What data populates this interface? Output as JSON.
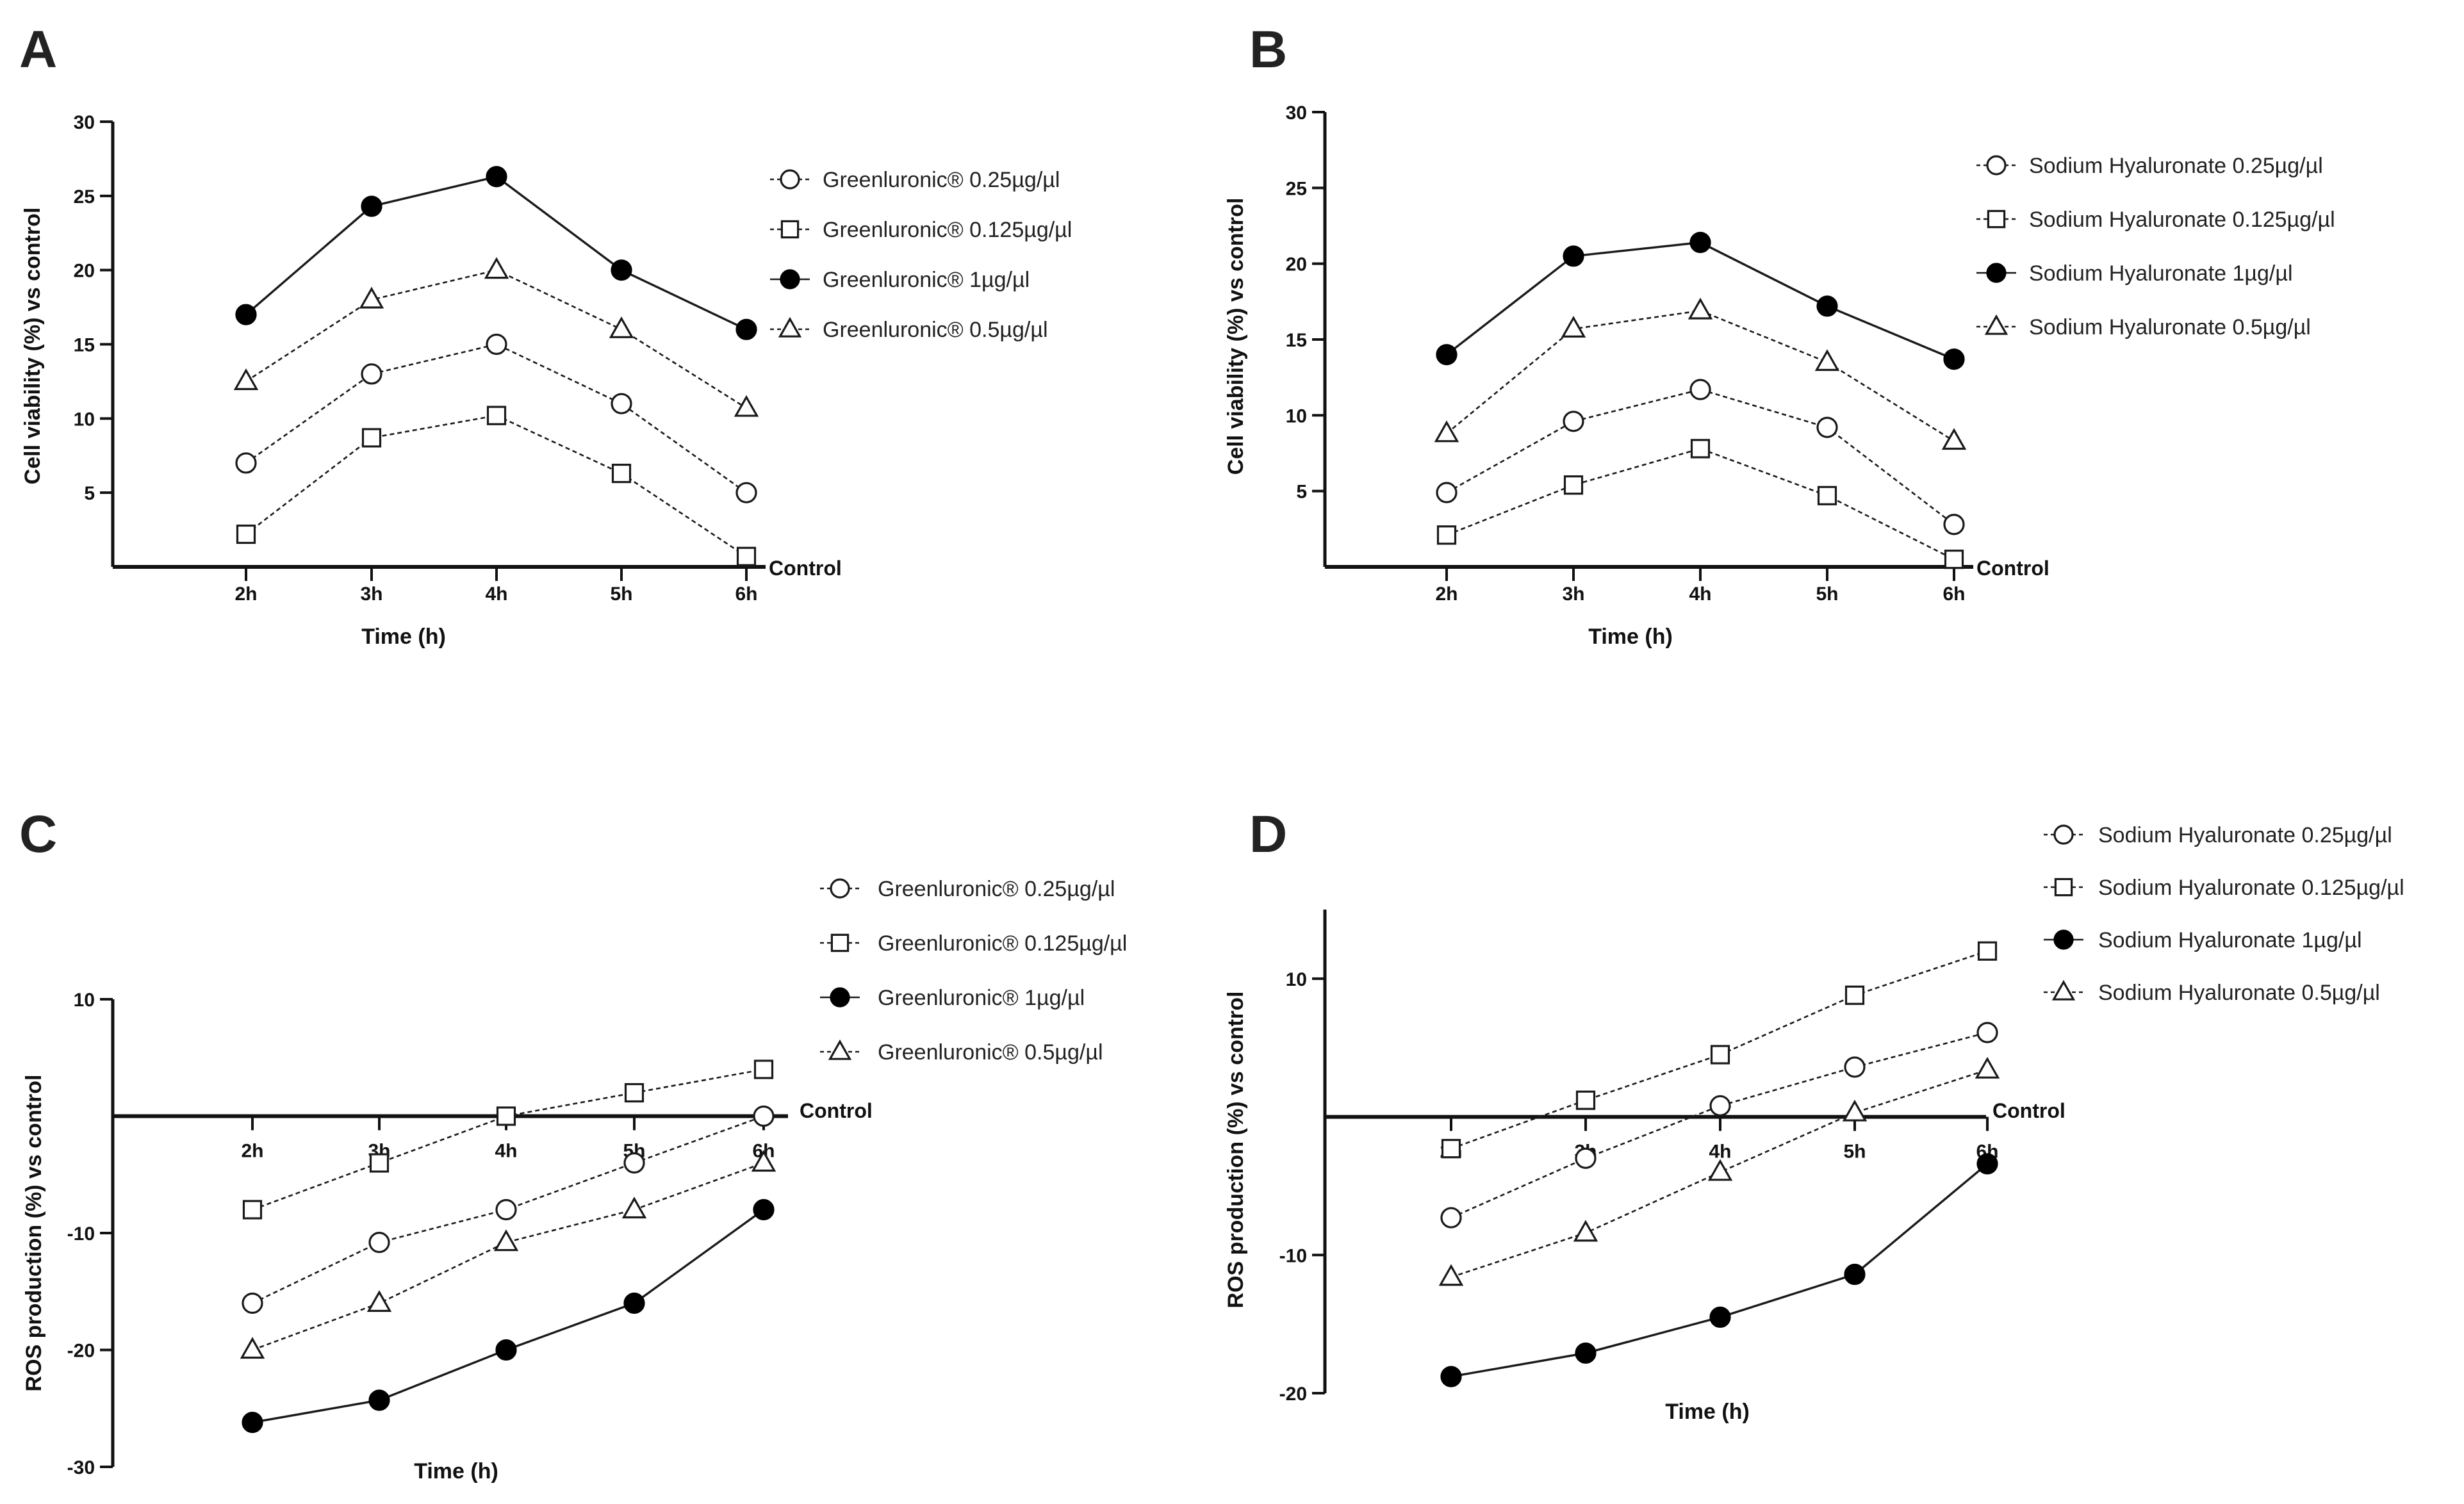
{
  "chart_data": [
    {
      "type": "line",
      "panel": "A",
      "title": "",
      "xlabel": "Time (h)",
      "ylabel": "Cell viability (%) vs control",
      "categories": [
        "2h",
        "3h",
        "4h",
        "5h",
        "6h"
      ],
      "ylim": [
        0,
        30
      ],
      "yticks": [
        5,
        10,
        15,
        20,
        25,
        30
      ],
      "baseline_label": "Control",
      "grid": false,
      "legend_position": "top-right",
      "series": [
        {
          "name": "Greenluronic® 0.25µg/µl",
          "marker": "circle-open",
          "line": "dashed",
          "values": [
            7,
            13,
            15,
            11,
            5
          ]
        },
        {
          "name": "Greenluronic® 0.125µg/µl",
          "marker": "square-open",
          "line": "dashed",
          "values": [
            2.2,
            8.7,
            10.2,
            6.3,
            0.7
          ]
        },
        {
          "name": "Greenluronic® 1µg/µl",
          "marker": "circle-filled",
          "line": "solid",
          "values": [
            17,
            24.3,
            26.3,
            20,
            16
          ]
        },
        {
          "name": "Greenluronic® 0.5µg/µl",
          "marker": "triangle-open",
          "line": "dashed",
          "values": [
            12.5,
            18,
            20,
            16,
            10.7
          ]
        }
      ]
    },
    {
      "type": "line",
      "panel": "B",
      "title": "",
      "xlabel": "Time (h)",
      "ylabel": "Cell viability (%) vs control",
      "categories": [
        "2h",
        "3h",
        "4h",
        "5h",
        "6h"
      ],
      "ylim": [
        0,
        30
      ],
      "yticks": [
        5,
        10,
        15,
        20,
        25,
        30
      ],
      "baseline_label": "Control",
      "grid": false,
      "legend_position": "top-right",
      "series": [
        {
          "name": "Sodium Hyaluronate 0.25µg/µl",
          "marker": "circle-open",
          "line": "dashed",
          "values": [
            4.9,
            9.6,
            11.7,
            9.2,
            2.8
          ]
        },
        {
          "name": "Sodium Hyaluronate 0.125µg/µl",
          "marker": "square-open",
          "line": "dashed",
          "values": [
            2.1,
            5.4,
            7.8,
            4.7,
            0.5
          ]
        },
        {
          "name": "Sodium Hyaluronate 1µg/µl",
          "marker": "circle-filled",
          "line": "solid",
          "values": [
            14,
            20.5,
            21.4,
            17.2,
            13.7
          ]
        },
        {
          "name": "Sodium Hyaluronate 0.5µg/µl",
          "marker": "triangle-open",
          "line": "dashed",
          "values": [
            8.8,
            15.7,
            16.9,
            13.5,
            8.3
          ]
        }
      ]
    },
    {
      "type": "line",
      "panel": "C",
      "title": "",
      "xlabel": "Time (h)",
      "ylabel": "ROS production (%) vs control",
      "categories": [
        "2h",
        "3h",
        "4h",
        "5h",
        "6h"
      ],
      "ylim": [
        -30,
        10
      ],
      "yticks": [
        10,
        -10,
        -20,
        -30
      ],
      "baseline_label": "Control",
      "grid": false,
      "legend_position": "top-right",
      "series": [
        {
          "name": "Greenluronic® 0.25µg/µl",
          "marker": "circle-open",
          "line": "dashed",
          "values": [
            -16,
            -10.8,
            -8,
            -4,
            0
          ]
        },
        {
          "name": "Greenluronic® 0.125µg/µl",
          "marker": "square-open",
          "line": "dashed",
          "values": [
            -8,
            -4,
            0,
            2,
            4
          ]
        },
        {
          "name": "Greenluronic® 1µg/µl",
          "marker": "circle-filled",
          "line": "solid",
          "values": [
            -26.2,
            -24.3,
            -20,
            -16,
            -8
          ]
        },
        {
          "name": "Greenluronic® 0.5µg/µl",
          "marker": "triangle-open",
          "line": "dashed",
          "values": [
            -20,
            -16,
            -10.8,
            -8,
            -4
          ]
        }
      ]
    },
    {
      "type": "line",
      "panel": "D",
      "title": "",
      "xlabel": "Time (h)",
      "ylabel": "ROS production (%) vs control",
      "categories": [
        "2h",
        "3h",
        "4h",
        "5h",
        "6h"
      ],
      "ylim": [
        -20,
        15
      ],
      "yticks": [
        10,
        -10,
        -20
      ],
      "baseline_label": "Control",
      "grid": false,
      "legend_position": "top-right",
      "series": [
        {
          "name": "Sodium Hyaluronate 0.25µg/µl",
          "marker": "circle-open",
          "line": "dashed",
          "values": [
            -7.3,
            -3,
            0.8,
            3.6,
            6.1
          ]
        },
        {
          "name": "Sodium Hyaluronate 0.125µg/µl",
          "marker": "square-open",
          "line": "dashed",
          "values": [
            -2.3,
            1.2,
            4.5,
            8.8,
            12
          ]
        },
        {
          "name": "Sodium Hyaluronate 1µg/µl",
          "marker": "circle-filled",
          "line": "solid",
          "values": [
            -18.8,
            -17.1,
            -14.5,
            -11.4,
            -3.4
          ]
        },
        {
          "name": "Sodium Hyaluronate 0.5µg/µl",
          "marker": "triangle-open",
          "line": "dashed",
          "values": [
            -11.6,
            -8.4,
            -4,
            0.3,
            3.4
          ]
        }
      ]
    }
  ]
}
